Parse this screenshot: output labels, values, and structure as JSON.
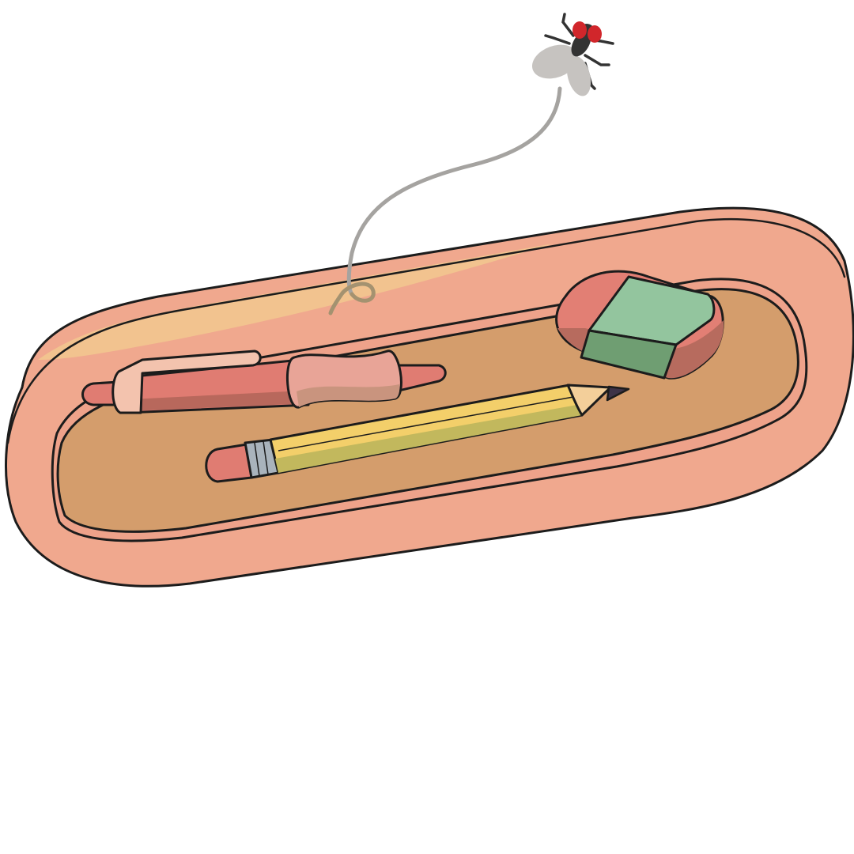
{
  "scene": {
    "background_color": "#ffffff",
    "outline_color": "#1c1c1c",
    "tray": {
      "icon": "pencil-tray",
      "rim_color": "#f0a88e",
      "rim_highlight_color": "#f2c58f",
      "inner_wall_color": "#eea28a",
      "floor_color": "#d49d6c"
    },
    "items": [
      {
        "icon": "pen",
        "barrel_color": "#e07c72",
        "barrel_shadow_color": "#b8685c",
        "grip_color": "#e8a497",
        "grip_shadow_color": "#c9947e",
        "clip_color": "#f3c3ae"
      },
      {
        "icon": "pencil",
        "body_color": "#f3cf6a",
        "body_shadow_color": "#c2b85d",
        "ferrule_color": "#a9b3bc",
        "eraser_color": "#e07c72",
        "wood_color": "#f3cf9a",
        "lead_color": "#3d3347"
      },
      {
        "icon": "eraser",
        "sleeve_color": "#e27f74",
        "sleeve_shadow_color": "#b76b5e",
        "top_color": "#93c59e",
        "side_color": "#6f9e72"
      }
    ],
    "fly": {
      "icon": "fly",
      "body_color": "#333333",
      "wing_color": "#c6c3c0",
      "eye_color": "#d1262b",
      "trail_color": "#a5a3a0",
      "trail_end_color": "#a49270"
    }
  }
}
